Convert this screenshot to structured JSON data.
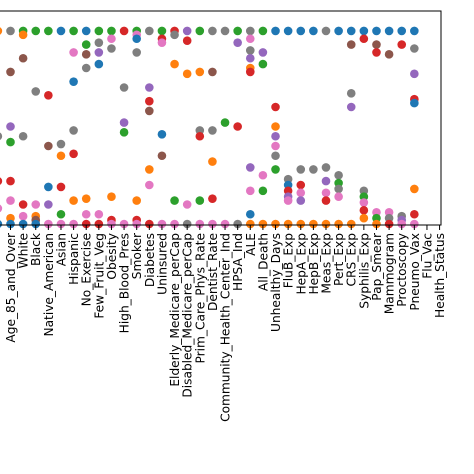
{
  "chart_data": {
    "type": "scatter",
    "title": "",
    "xlabel": "",
    "ylabel": "",
    "ylim": [
      0,
      1
    ],
    "grid": false,
    "legend": "none",
    "x_visible_from": -1.5,
    "x_visible_to": 37.5,
    "categories": [
      "Age_85_and_Over",
      "White",
      "Black",
      "Native_American",
      "Asian",
      "Hispanic",
      "No_Exercise",
      "Few_Fruit_Veg",
      "Obesity",
      "High_Blood_Pres",
      "Smoker",
      "Diabetes",
      "Uninsured",
      "Elderly_Medicare_perCap",
      "Disabled_Medicare_perCap",
      "Prim_Care_Phys_Rate",
      "Dentist_Rate",
      "Community_Health_Center_Ind",
      "HPSA_Ind",
      "ALE",
      "All_Death",
      "Unhealthy_Days",
      "FluB_Exp",
      "HepA_Exp",
      "HepB_Exp",
      "Meas_Exp",
      "Pert_Exp",
      "CRS_Exp",
      "Syphilis_Exp",
      "Pap_Smear",
      "Mammogram",
      "Proctoscopy",
      "Pneumo_Vax",
      "Flu_Vac",
      "Health_Status"
    ],
    "series_colors": [
      "#1f77b4",
      "#ff7f0e",
      "#2ca02c",
      "#d62728",
      "#9467bd",
      "#8c564b",
      "#e377c2",
      "#7f7f7f"
    ],
    "points": [
      {
        "x": -1,
        "y": 0.99,
        "c": 1
      },
      {
        "x": -1,
        "y": 0.45,
        "c": 7
      },
      {
        "x": -1,
        "y": 0.22,
        "c": 3
      },
      {
        "x": -1,
        "y": 0.08,
        "c": 6
      },
      {
        "x": -1,
        "y": 0.0,
        "c": 0
      },
      {
        "x": 0,
        "y": 0.99,
        "c": 7
      },
      {
        "x": 0,
        "y": 0.78,
        "c": 5
      },
      {
        "x": 0,
        "y": 0.5,
        "c": 4
      },
      {
        "x": 0,
        "y": 0.42,
        "c": 2
      },
      {
        "x": 0,
        "y": 0.22,
        "c": 3
      },
      {
        "x": 0,
        "y": 0.12,
        "c": 6
      },
      {
        "x": 0,
        "y": 0.03,
        "c": 1
      },
      {
        "x": 0,
        "y": 0.0,
        "c": 0
      },
      {
        "x": 1,
        "y": 0.99,
        "c": 2
      },
      {
        "x": 1,
        "y": 0.97,
        "c": 1
      },
      {
        "x": 1,
        "y": 0.85,
        "c": 5
      },
      {
        "x": 1,
        "y": 0.45,
        "c": 7
      },
      {
        "x": 1,
        "y": 0.1,
        "c": 3
      },
      {
        "x": 1,
        "y": 0.04,
        "c": 6
      },
      {
        "x": 1,
        "y": 0.0,
        "c": 0
      },
      {
        "x": 2,
        "y": 0.99,
        "c": 2
      },
      {
        "x": 2,
        "y": 0.68,
        "c": 7
      },
      {
        "x": 2,
        "y": 0.1,
        "c": 6
      },
      {
        "x": 2,
        "y": 0.04,
        "c": 1
      },
      {
        "x": 2,
        "y": 0.02,
        "c": 5
      },
      {
        "x": 2,
        "y": 0.0,
        "c": 0
      },
      {
        "x": 3,
        "y": 0.99,
        "c": 2
      },
      {
        "x": 3,
        "y": 0.66,
        "c": 3
      },
      {
        "x": 3,
        "y": 0.4,
        "c": 5
      },
      {
        "x": 3,
        "y": 0.19,
        "c": 0
      },
      {
        "x": 3,
        "y": 0.1,
        "c": 4
      },
      {
        "x": 3,
        "y": 0.0,
        "c": 6
      },
      {
        "x": 4,
        "y": 0.99,
        "c": 0
      },
      {
        "x": 4,
        "y": 0.41,
        "c": 7
      },
      {
        "x": 4,
        "y": 0.35,
        "c": 1
      },
      {
        "x": 4,
        "y": 0.19,
        "c": 3
      },
      {
        "x": 4,
        "y": 0.05,
        "c": 2
      },
      {
        "x": 4,
        "y": 0.0,
        "c": 6
      },
      {
        "x": 5,
        "y": 0.99,
        "c": 2
      },
      {
        "x": 5,
        "y": 0.88,
        "c": 6
      },
      {
        "x": 5,
        "y": 0.73,
        "c": 0
      },
      {
        "x": 5,
        "y": 0.48,
        "c": 7
      },
      {
        "x": 5,
        "y": 0.36,
        "c": 3
      },
      {
        "x": 5,
        "y": 0.12,
        "c": 1
      },
      {
        "x": 5,
        "y": 0.0,
        "c": 6
      },
      {
        "x": 6,
        "y": 0.99,
        "c": 0
      },
      {
        "x": 6,
        "y": 0.92,
        "c": 2
      },
      {
        "x": 6,
        "y": 0.87,
        "c": 5
      },
      {
        "x": 6,
        "y": 0.8,
        "c": 7
      },
      {
        "x": 6,
        "y": 0.13,
        "c": 1
      },
      {
        "x": 6,
        "y": 0.05,
        "c": 6
      },
      {
        "x": 6,
        "y": 0.0,
        "c": 3
      },
      {
        "x": 7,
        "y": 0.99,
        "c": 2
      },
      {
        "x": 7,
        "y": 0.93,
        "c": 7
      },
      {
        "x": 7,
        "y": 0.88,
        "c": 4
      },
      {
        "x": 7,
        "y": 0.82,
        "c": 0
      },
      {
        "x": 7,
        "y": 0.05,
        "c": 6
      },
      {
        "x": 7,
        "y": 0.0,
        "c": 3
      },
      {
        "x": 8,
        "y": 0.99,
        "c": 2
      },
      {
        "x": 8,
        "y": 0.95,
        "c": 6
      },
      {
        "x": 8,
        "y": 0.9,
        "c": 7
      },
      {
        "x": 8,
        "y": 0.14,
        "c": 1
      },
      {
        "x": 8,
        "y": 0.02,
        "c": 3
      },
      {
        "x": 8,
        "y": 0.0,
        "c": 6
      },
      {
        "x": 9,
        "y": 0.99,
        "c": 3
      },
      {
        "x": 9,
        "y": 0.7,
        "c": 7
      },
      {
        "x": 9,
        "y": 0.52,
        "c": 4
      },
      {
        "x": 9,
        "y": 0.47,
        "c": 2
      },
      {
        "x": 9,
        "y": 0.0,
        "c": 6
      },
      {
        "x": 10,
        "y": 0.99,
        "c": 2
      },
      {
        "x": 10,
        "y": 0.97,
        "c": 6
      },
      {
        "x": 10,
        "y": 0.95,
        "c": 0
      },
      {
        "x": 10,
        "y": 0.88,
        "c": 7
      },
      {
        "x": 10,
        "y": 0.12,
        "c": 1
      },
      {
        "x": 10,
        "y": 0.02,
        "c": 3
      },
      {
        "x": 10,
        "y": 0.0,
        "c": 6
      },
      {
        "x": 11,
        "y": 0.99,
        "c": 7
      },
      {
        "x": 11,
        "y": 0.7,
        "c": 4
      },
      {
        "x": 11,
        "y": 0.63,
        "c": 3
      },
      {
        "x": 11,
        "y": 0.58,
        "c": 5
      },
      {
        "x": 11,
        "y": 0.28,
        "c": 1
      },
      {
        "x": 11,
        "y": 0.2,
        "c": 6
      },
      {
        "x": 11,
        "y": 0.0,
        "c": 3
      },
      {
        "x": 12,
        "y": 0.99,
        "c": 2
      },
      {
        "x": 12,
        "y": 0.95,
        "c": 3
      },
      {
        "x": 12,
        "y": 0.93,
        "c": 6
      },
      {
        "x": 12,
        "y": 0.46,
        "c": 0
      },
      {
        "x": 12,
        "y": 0.35,
        "c": 5
      },
      {
        "x": 12,
        "y": 0.0,
        "c": 6
      },
      {
        "x": 13,
        "y": 0.99,
        "c": 3
      },
      {
        "x": 13,
        "y": 0.97,
        "c": 7
      },
      {
        "x": 13,
        "y": 0.82,
        "c": 1
      },
      {
        "x": 13,
        "y": 0.12,
        "c": 2
      },
      {
        "x": 13,
        "y": 0.0,
        "c": 6
      },
      {
        "x": 14,
        "y": 0.99,
        "c": 4
      },
      {
        "x": 14,
        "y": 0.94,
        "c": 3
      },
      {
        "x": 14,
        "y": 0.77,
        "c": 1
      },
      {
        "x": 14,
        "y": 0.1,
        "c": 6
      },
      {
        "x": 14,
        "y": 0.0,
        "c": 7
      },
      {
        "x": 15,
        "y": 0.99,
        "c": 2
      },
      {
        "x": 15,
        "y": 0.78,
        "c": 1
      },
      {
        "x": 15,
        "y": 0.48,
        "c": 7
      },
      {
        "x": 15,
        "y": 0.45,
        "c": 3
      },
      {
        "x": 15,
        "y": 0.12,
        "c": 2
      },
      {
        "x": 15,
        "y": 0.0,
        "c": 6
      },
      {
        "x": 16,
        "y": 0.99,
        "c": 7
      },
      {
        "x": 16,
        "y": 0.78,
        "c": 5
      },
      {
        "x": 16,
        "y": 0.48,
        "c": 7
      },
      {
        "x": 16,
        "y": 0.32,
        "c": 1
      },
      {
        "x": 16,
        "y": 0.13,
        "c": 3
      },
      {
        "x": 16,
        "y": 0.0,
        "c": 6
      },
      {
        "x": 17,
        "y": 0.99,
        "c": 7
      },
      {
        "x": 17,
        "y": 0.52,
        "c": 2
      },
      {
        "x": 17,
        "y": 0.0,
        "c": 6
      },
      {
        "x": 18,
        "y": 0.99,
        "c": 2
      },
      {
        "x": 18,
        "y": 0.93,
        "c": 4
      },
      {
        "x": 18,
        "y": 0.5,
        "c": 3
      },
      {
        "x": 18,
        "y": 0.0,
        "c": 7
      },
      {
        "x": 19,
        "y": 0.99,
        "c": 7
      },
      {
        "x": 19,
        "y": 0.95,
        "c": 6
      },
      {
        "x": 19,
        "y": 0.89,
        "c": 7
      },
      {
        "x": 19,
        "y": 0.85,
        "c": 4
      },
      {
        "x": 19,
        "y": 0.8,
        "c": 1
      },
      {
        "x": 19,
        "y": 0.78,
        "c": 3
      },
      {
        "x": 19,
        "y": 0.29,
        "c": 4
      },
      {
        "x": 19,
        "y": 0.17,
        "c": 6
      },
      {
        "x": 19,
        "y": 0.05,
        "c": 0
      },
      {
        "x": 19,
        "y": 0.0,
        "c": 1
      },
      {
        "x": 20,
        "y": 0.99,
        "c": 2
      },
      {
        "x": 20,
        "y": 0.88,
        "c": 4
      },
      {
        "x": 20,
        "y": 0.82,
        "c": 2
      },
      {
        "x": 20,
        "y": 0.25,
        "c": 6
      },
      {
        "x": 20,
        "y": 0.17,
        "c": 2
      },
      {
        "x": 20,
        "y": 0.0,
        "c": 1
      },
      {
        "x": 21,
        "y": 0.99,
        "c": 0
      },
      {
        "x": 21,
        "y": 0.6,
        "c": 3
      },
      {
        "x": 21,
        "y": 0.5,
        "c": 1
      },
      {
        "x": 21,
        "y": 0.45,
        "c": 4
      },
      {
        "x": 21,
        "y": 0.4,
        "c": 6
      },
      {
        "x": 21,
        "y": 0.35,
        "c": 7
      },
      {
        "x": 21,
        "y": 0.28,
        "c": 2
      },
      {
        "x": 21,
        "y": 0.0,
        "c": 1
      },
      {
        "x": 22,
        "y": 0.99,
        "c": 0
      },
      {
        "x": 22,
        "y": 0.23,
        "c": 7
      },
      {
        "x": 22,
        "y": 0.2,
        "c": 0
      },
      {
        "x": 22,
        "y": 0.17,
        "c": 3
      },
      {
        "x": 22,
        "y": 0.14,
        "c": 4
      },
      {
        "x": 22,
        "y": 0.12,
        "c": 6
      },
      {
        "x": 22,
        "y": 0.0,
        "c": 1
      },
      {
        "x": 23,
        "y": 0.99,
        "c": 0
      },
      {
        "x": 23,
        "y": 0.28,
        "c": 7
      },
      {
        "x": 23,
        "y": 0.2,
        "c": 3
      },
      {
        "x": 23,
        "y": 0.16,
        "c": 6
      },
      {
        "x": 23,
        "y": 0.12,
        "c": 4
      },
      {
        "x": 23,
        "y": 0.0,
        "c": 1
      },
      {
        "x": 24,
        "y": 0.99,
        "c": 0
      },
      {
        "x": 24,
        "y": 0.28,
        "c": 7
      },
      {
        "x": 24,
        "y": 0.0,
        "c": 1
      },
      {
        "x": 25,
        "y": 0.99,
        "c": 7
      },
      {
        "x": 25,
        "y": 0.29,
        "c": 7
      },
      {
        "x": 25,
        "y": 0.22,
        "c": 4
      },
      {
        "x": 25,
        "y": 0.16,
        "c": 6
      },
      {
        "x": 25,
        "y": 0.12,
        "c": 3
      },
      {
        "x": 25,
        "y": 0.0,
        "c": 1
      },
      {
        "x": 26,
        "y": 0.99,
        "c": 0
      },
      {
        "x": 26,
        "y": 0.25,
        "c": 7
      },
      {
        "x": 26,
        "y": 0.21,
        "c": 2
      },
      {
        "x": 26,
        "y": 0.18,
        "c": 7
      },
      {
        "x": 26,
        "y": 0.14,
        "c": 6
      },
      {
        "x": 26,
        "y": 0.0,
        "c": 1
      },
      {
        "x": 27,
        "y": 0.99,
        "c": 0
      },
      {
        "x": 27,
        "y": 0.92,
        "c": 5
      },
      {
        "x": 27,
        "y": 0.67,
        "c": 7
      },
      {
        "x": 27,
        "y": 0.6,
        "c": 4
      },
      {
        "x": 27,
        "y": 0.0,
        "c": 1
      },
      {
        "x": 28,
        "y": 0.99,
        "c": 0
      },
      {
        "x": 28,
        "y": 0.95,
        "c": 3
      },
      {
        "x": 28,
        "y": 0.17,
        "c": 7
      },
      {
        "x": 28,
        "y": 0.14,
        "c": 2
      },
      {
        "x": 28,
        "y": 0.11,
        "c": 6
      },
      {
        "x": 28,
        "y": 0.07,
        "c": 3
      },
      {
        "x": 28,
        "y": 0.03,
        "c": 1
      },
      {
        "x": 29,
        "y": 0.99,
        "c": 0
      },
      {
        "x": 29,
        "y": 0.92,
        "c": 5
      },
      {
        "x": 29,
        "y": 0.88,
        "c": 3
      },
      {
        "x": 29,
        "y": 0.06,
        "c": 6
      },
      {
        "x": 29,
        "y": 0.03,
        "c": 2
      },
      {
        "x": 29,
        "y": 0.0,
        "c": 1
      },
      {
        "x": 30,
        "y": 0.99,
        "c": 0
      },
      {
        "x": 30,
        "y": 0.87,
        "c": 5
      },
      {
        "x": 30,
        "y": 0.06,
        "c": 6
      },
      {
        "x": 30,
        "y": 0.03,
        "c": 7
      },
      {
        "x": 30,
        "y": 0.0,
        "c": 3
      },
      {
        "x": 31,
        "y": 0.99,
        "c": 0
      },
      {
        "x": 31,
        "y": 0.92,
        "c": 3
      },
      {
        "x": 31,
        "y": 0.04,
        "c": 7
      },
      {
        "x": 31,
        "y": 0.02,
        "c": 4
      },
      {
        "x": 31,
        "y": 0.0,
        "c": 6
      },
      {
        "x": 32,
        "y": 0.99,
        "c": 0
      },
      {
        "x": 32,
        "y": 0.9,
        "c": 7
      },
      {
        "x": 32,
        "y": 0.77,
        "c": 4
      },
      {
        "x": 32,
        "y": 0.64,
        "c": 3
      },
      {
        "x": 32,
        "y": 0.62,
        "c": 0
      },
      {
        "x": 32,
        "y": 0.18,
        "c": 1
      },
      {
        "x": 32,
        "y": 0.05,
        "c": 3
      },
      {
        "x": 32,
        "y": 0.0,
        "c": 6
      }
    ]
  }
}
